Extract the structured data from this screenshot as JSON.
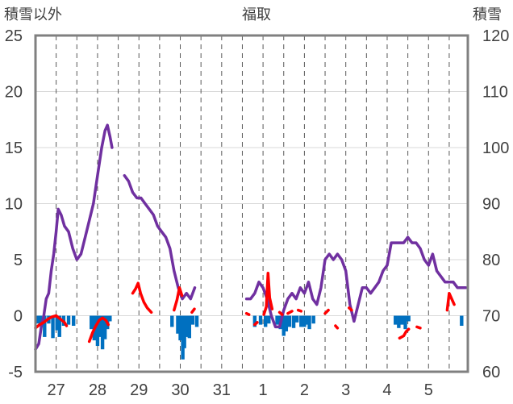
{
  "chart_data": {
    "type": "line",
    "title": "福取",
    "left_axis_label": "積雪以外",
    "right_axis_label": "積雪",
    "left_ylim": [
      -5,
      25
    ],
    "left_ticks": [
      "25",
      "20",
      "15",
      "10",
      "5",
      "0",
      "-5"
    ],
    "right_ylim": [
      60,
      120
    ],
    "right_ticks": [
      "120",
      "110",
      "100",
      "90",
      "80",
      "70",
      "60"
    ],
    "x_range": [
      0,
      10.45
    ],
    "x_ticks": [
      {
        "x": 0.5,
        "label": "27"
      },
      {
        "x": 1.5,
        "label": "28"
      },
      {
        "x": 2.5,
        "label": "29"
      },
      {
        "x": 3.5,
        "label": "30"
      },
      {
        "x": 4.5,
        "label": "31"
      },
      {
        "x": 5.5,
        "label": "1"
      },
      {
        "x": 6.5,
        "label": "2"
      },
      {
        "x": 7.5,
        "label": "3"
      },
      {
        "x": 8.5,
        "label": "4"
      },
      {
        "x": 9.5,
        "label": "5"
      }
    ],
    "day_boundaries": [
      1,
      2,
      3,
      4,
      5,
      6,
      7,
      8,
      9,
      10
    ],
    "grid": true,
    "colors": {
      "snow_depth": "#7030a0",
      "temperature": "#ff0000",
      "precipitation": "#0070c0",
      "axis": "#808080",
      "grid": "#595959"
    },
    "series": [
      {
        "axis": "right",
        "style": "snow-depth",
        "segments": [
          [
            [
              0.0,
              64
            ],
            [
              0.08,
              65
            ],
            [
              0.14,
              68
            ],
            [
              0.2,
              70
            ],
            [
              0.26,
              73
            ],
            [
              0.32,
              74
            ],
            [
              0.38,
              78
            ],
            [
              0.44,
              81
            ],
            [
              0.5,
              85
            ],
            [
              0.55,
              89
            ],
            [
              0.62,
              88
            ],
            [
              0.7,
              86
            ],
            [
              0.8,
              85
            ],
            [
              0.9,
              82
            ],
            [
              1.0,
              80
            ],
            [
              1.1,
              81
            ],
            [
              1.2,
              84
            ],
            [
              1.3,
              87
            ],
            [
              1.4,
              90
            ],
            [
              1.5,
              95
            ],
            [
              1.6,
              100
            ],
            [
              1.68,
              103
            ],
            [
              1.74,
              104
            ],
            [
              1.8,
              102
            ],
            [
              1.85,
              100
            ]
          ],
          [
            [
              2.15,
              95
            ],
            [
              2.25,
              94
            ],
            [
              2.35,
              92
            ],
            [
              2.45,
              91
            ],
            [
              2.55,
              91
            ],
            [
              2.65,
              90
            ],
            [
              2.75,
              89
            ],
            [
              2.85,
              88
            ],
            [
              2.95,
              86
            ],
            [
              3.05,
              85
            ],
            [
              3.15,
              84
            ],
            [
              3.25,
              82
            ],
            [
              3.35,
              78
            ],
            [
              3.45,
              75
            ],
            [
              3.55,
              73
            ],
            [
              3.65,
              74
            ],
            [
              3.75,
              73
            ],
            [
              3.85,
              75
            ]
          ],
          [
            [
              5.1,
              73
            ],
            [
              5.2,
              73
            ],
            [
              5.3,
              74
            ],
            [
              5.4,
              76
            ],
            [
              5.5,
              75
            ],
            [
              5.6,
              73
            ],
            [
              5.7,
              70
            ],
            [
              5.8,
              68
            ],
            [
              5.9,
              68
            ],
            [
              6.0,
              71
            ],
            [
              6.1,
              73
            ],
            [
              6.2,
              74
            ],
            [
              6.3,
              73
            ],
            [
              6.4,
              75
            ],
            [
              6.5,
              74
            ],
            [
              6.6,
              76
            ],
            [
              6.7,
              73
            ],
            [
              6.8,
              72
            ],
            [
              6.9,
              75
            ],
            [
              7.0,
              80
            ],
            [
              7.1,
              81
            ],
            [
              7.2,
              80
            ],
            [
              7.3,
              81
            ],
            [
              7.4,
              80
            ],
            [
              7.5,
              78
            ],
            [
              7.6,
              72
            ],
            [
              7.7,
              69
            ],
            [
              7.8,
              72
            ],
            [
              7.9,
              75
            ],
            [
              8.0,
              75
            ],
            [
              8.1,
              74
            ],
            [
              8.2,
              75
            ],
            [
              8.3,
              76
            ],
            [
              8.4,
              78
            ],
            [
              8.5,
              79
            ],
            [
              8.6,
              83
            ],
            [
              8.7,
              83
            ],
            [
              8.8,
              83
            ],
            [
              8.9,
              83
            ],
            [
              9.0,
              84
            ],
            [
              9.1,
              83
            ],
            [
              9.2,
              83
            ],
            [
              9.3,
              82
            ],
            [
              9.4,
              80
            ],
            [
              9.5,
              79
            ],
            [
              9.6,
              81
            ],
            [
              9.7,
              78
            ],
            [
              9.8,
              77
            ],
            [
              9.9,
              76
            ],
            [
              10.0,
              76
            ],
            [
              10.1,
              76
            ],
            [
              10.2,
              75
            ],
            [
              10.3,
              75
            ],
            [
              10.4,
              75
            ]
          ]
        ]
      },
      {
        "axis": "left",
        "style": "temperature",
        "segments": [
          [
            [
              0.0,
              -1.1
            ],
            [
              0.1,
              -0.8
            ],
            [
              0.2,
              -0.6
            ],
            [
              0.3,
              -0.3
            ],
            [
              0.4,
              -0.1
            ],
            [
              0.5,
              0.0
            ],
            [
              0.6,
              -0.3
            ],
            [
              0.7,
              -0.6
            ],
            [
              0.75,
              -0.9
            ]
          ],
          [
            [
              1.3,
              -2.3
            ],
            [
              1.38,
              -1.5
            ],
            [
              1.46,
              -0.9
            ],
            [
              1.54,
              -0.4
            ],
            [
              1.62,
              -0.2
            ],
            [
              1.7,
              -0.4
            ],
            [
              1.76,
              -0.8
            ]
          ],
          [
            [
              2.35,
              2.0
            ],
            [
              2.42,
              2.4
            ],
            [
              2.48,
              2.9
            ],
            [
              2.54,
              2.0
            ],
            [
              2.62,
              1.2
            ],
            [
              2.7,
              0.7
            ],
            [
              2.8,
              0.3
            ]
          ],
          [
            [
              3.35,
              0.5
            ],
            [
              3.42,
              1.4
            ],
            [
              3.48,
              2.5
            ],
            [
              3.54,
              1.8
            ]
          ],
          [
            [
              3.78,
              0.3
            ],
            [
              3.84,
              0.6
            ]
          ],
          [
            [
              5.1,
              0.2
            ],
            [
              5.16,
              0.1
            ]
          ],
          [
            [
              5.3,
              -0.8
            ],
            [
              5.36,
              -0.6
            ]
          ],
          [
            [
              5.52,
              0.1
            ],
            [
              5.58,
              0.8
            ],
            [
              5.62,
              3.8
            ],
            [
              5.66,
              1.6
            ],
            [
              5.72,
              0.6
            ]
          ],
          [
            [
              5.9,
              0.3
            ],
            [
              5.96,
              0.1
            ]
          ],
          [
            [
              6.1,
              0.2
            ],
            [
              6.2,
              0.4
            ]
          ],
          [
            [
              6.35,
              0.5
            ],
            [
              6.42,
              0.4
            ]
          ],
          [
            [
              7.0,
              0.2
            ],
            [
              7.08,
              0.5
            ]
          ],
          [
            [
              7.25,
              -0.9
            ],
            [
              7.3,
              -1.1
            ]
          ],
          [
            [
              7.58,
              0.7
            ],
            [
              7.64,
              0.5
            ]
          ],
          [
            [
              8.8,
              -2.0
            ],
            [
              8.9,
              -1.8
            ],
            [
              8.96,
              -1.4
            ],
            [
              9.02,
              -1.2
            ]
          ],
          [
            [
              9.22,
              -1.0
            ],
            [
              9.3,
              -1.1
            ]
          ],
          [
            [
              9.95,
              0.5
            ],
            [
              10.0,
              2.0
            ],
            [
              10.06,
              1.5
            ],
            [
              10.12,
              1.0
            ]
          ]
        ]
      },
      {
        "axis": "left",
        "style": "precipitation",
        "bars": [
          [
            0.05,
            -0.7
          ],
          [
            0.12,
            -0.9
          ],
          [
            0.22,
            -1.9
          ],
          [
            0.32,
            -0.7
          ],
          [
            0.42,
            -2.0
          ],
          [
            0.52,
            -1.3
          ],
          [
            0.58,
            -1.9
          ],
          [
            0.68,
            -0.9
          ],
          [
            0.8,
            -0.8
          ],
          [
            0.92,
            -0.9
          ],
          [
            1.35,
            -1.2
          ],
          [
            1.42,
            -2.2
          ],
          [
            1.5,
            -2.7
          ],
          [
            1.56,
            -1.9
          ],
          [
            1.62,
            -3.0
          ],
          [
            1.68,
            -2.1
          ],
          [
            1.74,
            -1.2
          ],
          [
            1.8,
            -0.5
          ],
          [
            3.3,
            -1.0
          ],
          [
            3.44,
            -1.6
          ],
          [
            3.5,
            -2.2
          ],
          [
            3.56,
            -3.9
          ],
          [
            3.6,
            -2.9
          ],
          [
            3.66,
            -1.9
          ],
          [
            3.72,
            -2.0
          ],
          [
            3.8,
            -0.8
          ],
          [
            3.9,
            -1.0
          ],
          [
            5.3,
            -1.0
          ],
          [
            5.44,
            -0.8
          ],
          [
            5.56,
            -1.0
          ],
          [
            5.64,
            -0.7
          ],
          [
            5.84,
            -0.8
          ],
          [
            5.92,
            -1.2
          ],
          [
            6.0,
            -1.8
          ],
          [
            6.06,
            -1.4
          ],
          [
            6.14,
            -1.0
          ],
          [
            6.24,
            -1.1
          ],
          [
            6.32,
            -0.6
          ],
          [
            6.42,
            -1.0
          ],
          [
            6.5,
            -1.0
          ],
          [
            6.56,
            -0.8
          ],
          [
            6.62,
            -1.2
          ],
          [
            6.72,
            -0.7
          ],
          [
            8.7,
            -0.8
          ],
          [
            8.78,
            -1.1
          ],
          [
            8.86,
            -0.8
          ],
          [
            8.94,
            -1.2
          ],
          [
            9.02,
            -0.5
          ],
          [
            10.3,
            -0.9
          ]
        ]
      }
    ]
  }
}
